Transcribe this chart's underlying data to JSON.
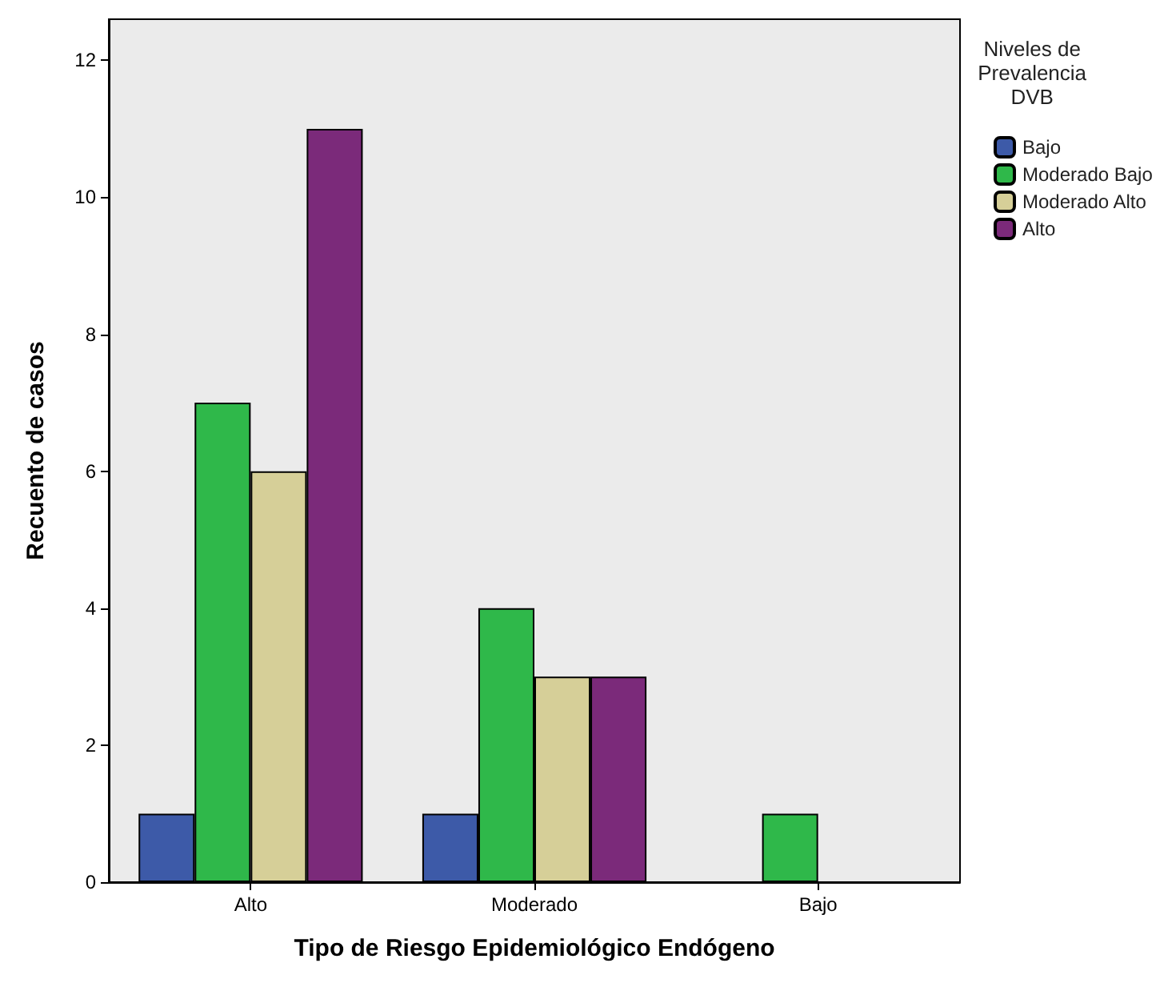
{
  "chart_data": {
    "type": "bar",
    "xlabel": "Tipo de Riesgo Epidemiológico Endógeno",
    "ylabel": "Recuento de casos",
    "legend_title": "Niveles de\nPrevalencia\nDVB",
    "categories": [
      "Alto",
      "Moderado",
      "Bajo"
    ],
    "series": [
      {
        "name": "Bajo",
        "color": "#3d5aa8",
        "values": [
          1,
          1,
          null
        ]
      },
      {
        "name": "Moderado Bajo",
        "color": "#2fb84a",
        "values": [
          7,
          4,
          1
        ]
      },
      {
        "name": "Moderado Alto",
        "color": "#d6cf98",
        "values": [
          6,
          3,
          null
        ]
      },
      {
        "name": "Alto",
        "color": "#7b2a7a",
        "values": [
          11,
          3,
          null
        ]
      }
    ],
    "ylim": [
      0,
      12.6
    ],
    "yticks": [
      0,
      2,
      4,
      6,
      8,
      10,
      12
    ],
    "grid": false,
    "legend": "top right"
  }
}
